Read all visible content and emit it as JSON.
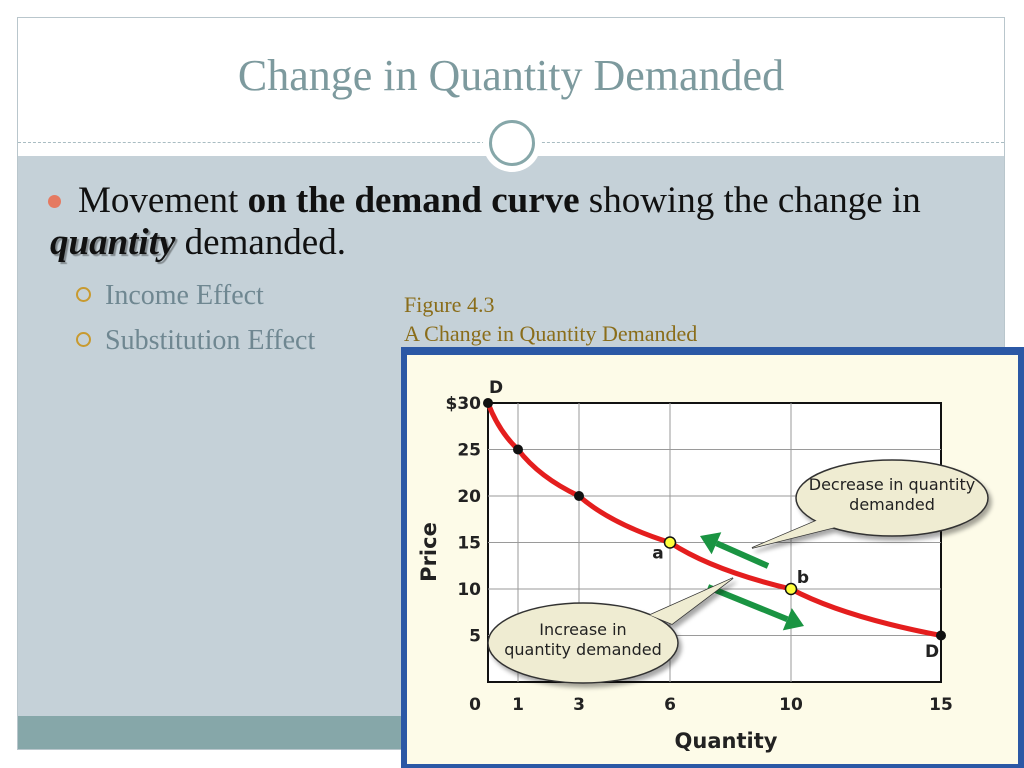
{
  "slide": {
    "title": "Change in Quantity Demanded",
    "bullet": {
      "part1": "Movement ",
      "bold": "on the demand curve",
      "part2": " showing the change in ",
      "emph": "quantity",
      "part3": " demanded."
    },
    "subbullets": [
      "Income Effect",
      "Substitution Effect"
    ]
  },
  "figure": {
    "number": "Figure 4.3",
    "caption": "A Change in Quantity Demanded"
  },
  "chart_data": {
    "type": "line",
    "xlabel": "Quantity",
    "ylabel": "Price",
    "xlim": [
      0,
      15
    ],
    "ylim": [
      0,
      30
    ],
    "x_ticks": [
      "0",
      "1",
      "3",
      "6",
      "10",
      "15"
    ],
    "y_ticks": [
      "$30",
      "25",
      "20",
      "15",
      "10",
      "5"
    ],
    "grid": true,
    "series": [
      {
        "x": [
          0,
          1,
          3,
          6,
          10,
          15
        ],
        "y": [
          30,
          25,
          20,
          15,
          10,
          5
        ]
      }
    ],
    "curve_labels": [
      "D",
      "D"
    ],
    "points": [
      {
        "label": "a",
        "x": 6,
        "y": 15
      },
      {
        "label": "b",
        "x": 10,
        "y": 10
      }
    ],
    "callouts": {
      "decrease": [
        "Decrease in quantity",
        "demanded"
      ],
      "increase": [
        "Increase in",
        "quantity demanded"
      ]
    },
    "colors": {
      "curve": "#e41e1e",
      "arrow": "#1a9442",
      "highlight": "#ffff3c"
    }
  }
}
